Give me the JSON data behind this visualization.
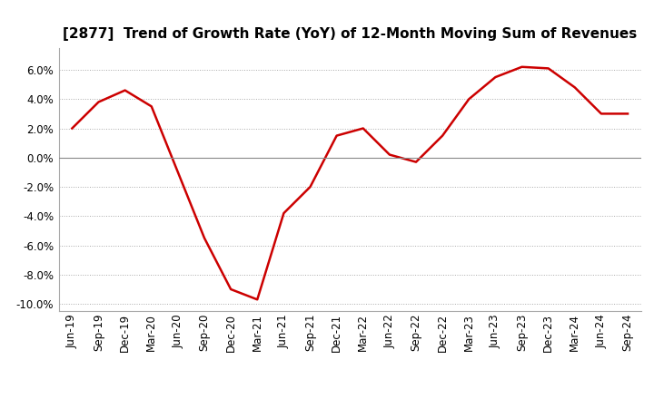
{
  "title": "[2877]  Trend of Growth Rate (YoY) of 12-Month Moving Sum of Revenues",
  "x_labels": [
    "Jun-19",
    "Sep-19",
    "Dec-19",
    "Mar-20",
    "Jun-20",
    "Sep-20",
    "Dec-20",
    "Mar-21",
    "Jun-21",
    "Sep-21",
    "Dec-21",
    "Mar-22",
    "Jun-22",
    "Sep-22",
    "Dec-22",
    "Mar-23",
    "Jun-23",
    "Sep-23",
    "Dec-23",
    "Mar-24",
    "Jun-24",
    "Sep-24"
  ],
  "y_values": [
    0.02,
    0.038,
    0.046,
    0.035,
    -0.01,
    -0.055,
    -0.09,
    -0.097,
    -0.038,
    -0.02,
    0.015,
    0.02,
    0.002,
    -0.003,
    0.015,
    0.04,
    0.055,
    0.062,
    0.061,
    0.048,
    0.03,
    0.03
  ],
  "line_color": "#cc0000",
  "line_width": 1.8,
  "ylim": [
    -0.105,
    0.075
  ],
  "yticks": [
    -0.1,
    -0.08,
    -0.06,
    -0.04,
    -0.02,
    0.0,
    0.02,
    0.04,
    0.06
  ],
  "bg_color": "#ffffff",
  "plot_bg_color": "#ffffff",
  "grid_color": "#aaaaaa",
  "title_fontsize": 11,
  "tick_fontsize": 8.5
}
